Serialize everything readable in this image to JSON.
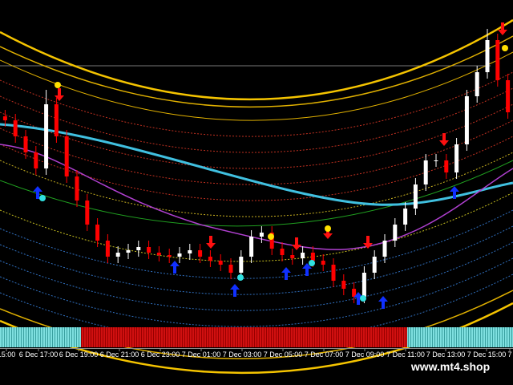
{
  "chart_data": {
    "type": "candlestick",
    "x_labels": [
      "15:00",
      "6 Dec 17:00",
      "6 Dec 19:00",
      "6 Dec 21:00",
      "6 Dec 23:00",
      "7 Dec 01:00",
      "7 Dec 03:00",
      "7 Dec 05:00",
      "7 Dec 07:00",
      "7 Dec 09:00",
      "7 Dec 11:00",
      "7 Dec 13:00",
      "7 Dec 15:00",
      "7"
    ],
    "watermark": "www.mt4.shop",
    "ylim": [
      0,
      100
    ],
    "up_color": "#ffffff",
    "down_color": "#ff0000",
    "series": [
      {
        "open": [
          63.75,
          62.5,
          57.5,
          52.5,
          47.5,
          67.5,
          57.5,
          45,
          37.5,
          30,
          25,
          20,
          21.25,
          22,
          23,
          21.25,
          20.5,
          20,
          21,
          22,
          20,
          18.75,
          17.5,
          15,
          20,
          26.25,
          27.5,
          22.5,
          20.5,
          19.5,
          21.25,
          18.75,
          17.5,
          12.5,
          10,
          7.5,
          15,
          20,
          25,
          30,
          35,
          42.5,
          50,
          50,
          46.25,
          55,
          70,
          77.5,
          87.5,
          75
        ],
        "high": [
          65.75,
          64.5,
          59.5,
          54.5,
          72,
          69.5,
          59.5,
          47,
          39.5,
          32,
          27,
          23.25,
          24,
          25,
          25,
          23.25,
          22.5,
          23,
          24,
          24,
          22,
          20.75,
          19.5,
          22,
          28.25,
          29.5,
          29.5,
          24.5,
          22.5,
          23.25,
          23.25,
          20.75,
          19.5,
          14.5,
          12,
          17,
          22,
          27,
          32,
          37,
          44.5,
          52,
          52,
          52,
          57,
          72,
          79.5,
          91,
          89.5,
          77
        ],
        "low": [
          60.5,
          55.5,
          50.5,
          45.5,
          45.5,
          55.5,
          43,
          35.5,
          28,
          23,
          18,
          18,
          19.25,
          20,
          19.25,
          18.5,
          18,
          18,
          19,
          18,
          16.75,
          15.5,
          13,
          13,
          18,
          24.25,
          20.5,
          18.5,
          17.5,
          17.5,
          16.75,
          15.5,
          10.5,
          8,
          5.5,
          5.5,
          13,
          18,
          23,
          28,
          33,
          40.5,
          48,
          44.25,
          44.25,
          53,
          68,
          75.5,
          73,
          63
        ],
        "close": [
          62.5,
          57.5,
          52.5,
          47.5,
          67.5,
          57.5,
          45,
          37.5,
          30,
          25,
          20,
          21.25,
          22,
          23,
          21.25,
          20.5,
          20,
          21,
          22,
          20,
          18.75,
          17.5,
          15,
          20,
          26.25,
          27.5,
          22.5,
          20.5,
          19.5,
          21.25,
          18.75,
          17.5,
          12.5,
          10,
          7.5,
          15,
          20,
          25,
          30,
          35,
          42.5,
          50,
          50,
          46.25,
          55,
          70,
          77.5,
          87.5,
          75,
          65
        ]
      }
    ]
  }
}
